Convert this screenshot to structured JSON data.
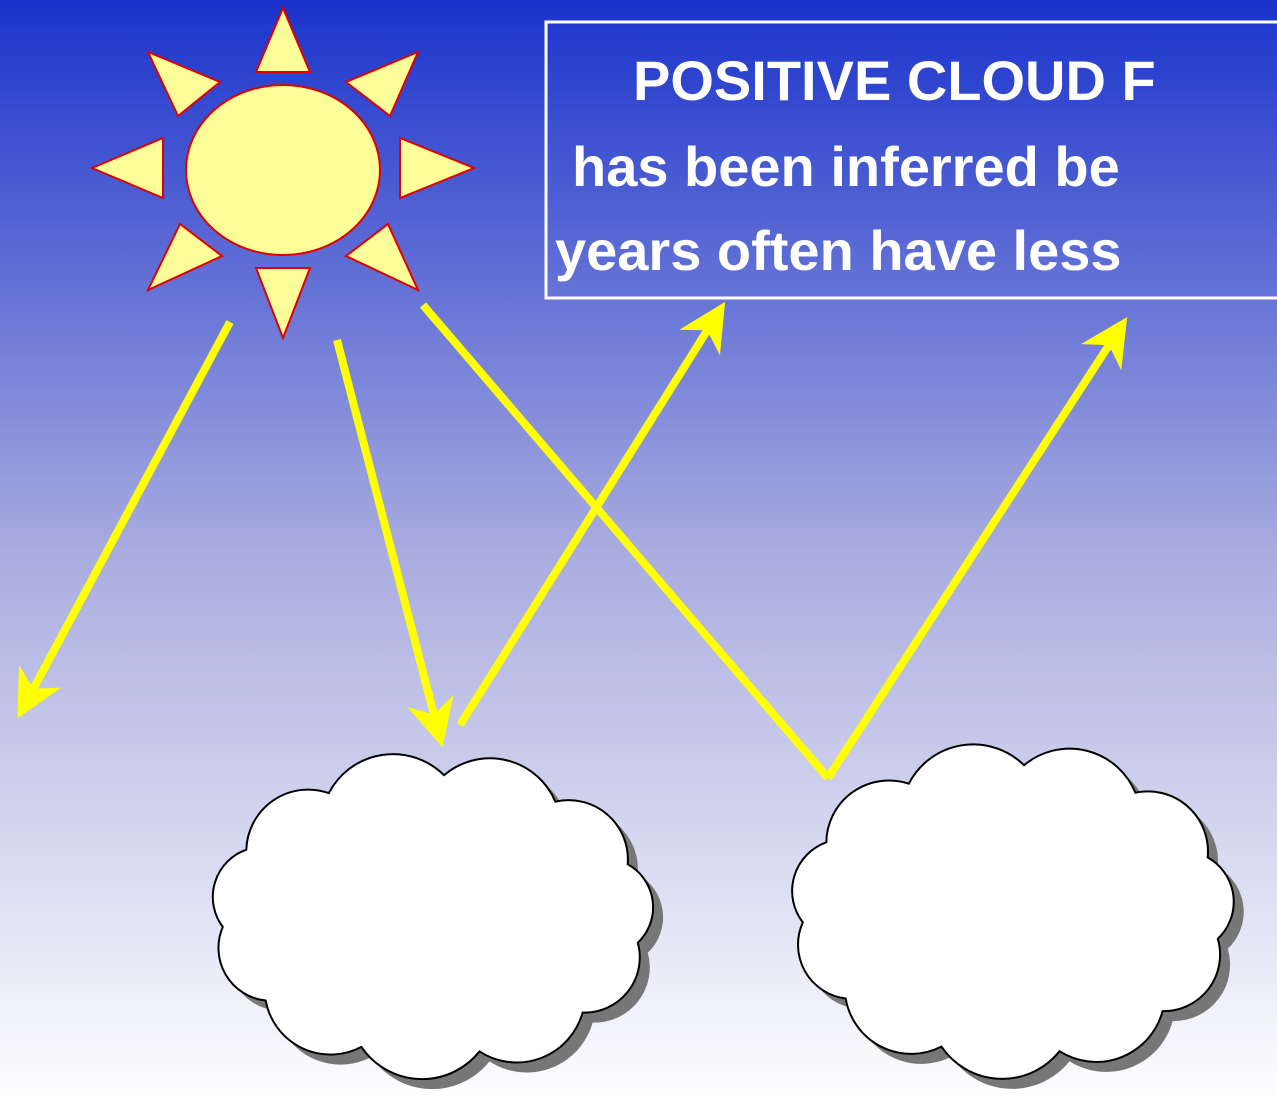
{
  "callout": {
    "lines": [
      "POSITIVE CLOUD F",
      "has been inferred be",
      "years often have less"
    ]
  }
}
